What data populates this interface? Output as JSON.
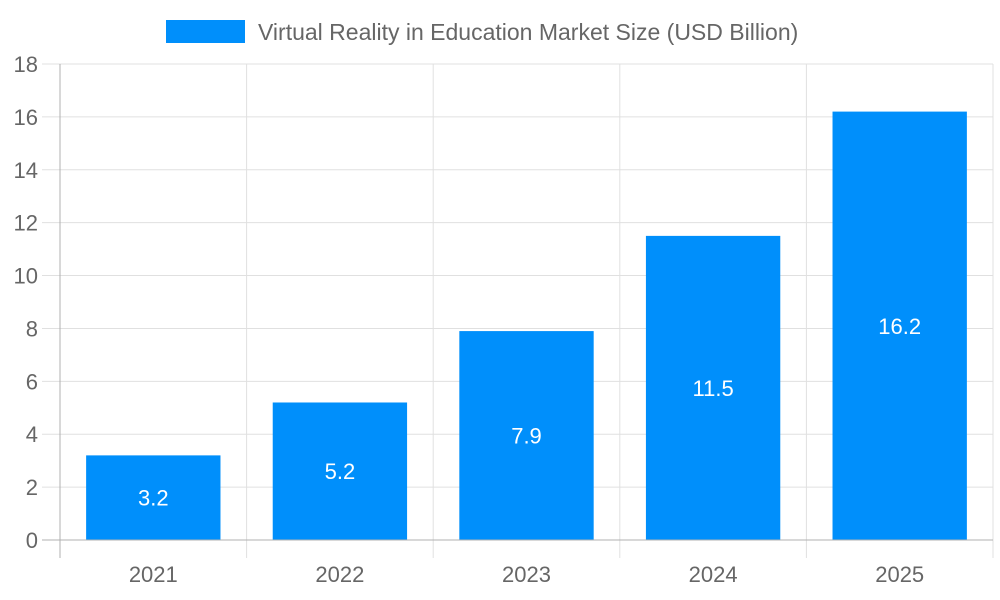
{
  "chart_data": {
    "type": "bar",
    "categories": [
      "2021",
      "2022",
      "2023",
      "2024",
      "2025"
    ],
    "series": [
      {
        "name": "Virtual Reality in Education Market Size (USD Billion)",
        "values": [
          3.2,
          5.2,
          7.9,
          11.5,
          16.2
        ]
      }
    ],
    "ylim": [
      0,
      18
    ],
    "yticks": [
      0,
      2,
      4,
      6,
      8,
      10,
      12,
      14,
      16,
      18
    ],
    "grid": true,
    "legend": "top",
    "data_labels": true,
    "colors": {
      "bar": "#008FFB",
      "grid": "#e0e0e0",
      "axis": "#b0b0b0",
      "text": "#666666",
      "label": "#ffffff"
    }
  }
}
